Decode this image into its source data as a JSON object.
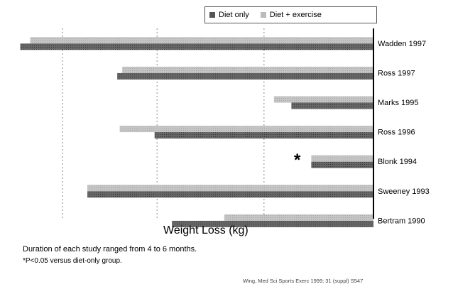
{
  "chart_data": {
    "type": "bar",
    "orientation": "horizontal",
    "categories": [
      "Wadden 1997",
      "Ross 1997",
      "Marks 1995",
      "Ross 1996",
      "Blonk 1994",
      "Sweeney 1993",
      "Bertram 1990"
    ],
    "series": [
      {
        "name": "Diet only",
        "color": "#5a5a5a",
        "values": [
          -14.2,
          -10.3,
          -3.3,
          -8.8,
          -2.5,
          -11.5,
          -8.1
        ]
      },
      {
        "name": "Diet + exercise",
        "color": "#bdbdbd",
        "values": [
          -13.8,
          -10.1,
          -4.0,
          -10.2,
          -2.5,
          -11.5,
          -6.0
        ]
      }
    ],
    "xlabel": "Weight Loss (kg)",
    "xlim": [
      -14.5,
      0
    ],
    "gridlines": [
      -12.5,
      -8.7,
      -4.4
    ],
    "grid": true,
    "legend_position": "top-right",
    "annotations": [
      {
        "text": "*",
        "category": "Blonk 1994"
      }
    ]
  },
  "notes": {
    "duration": "Duration of each study ranged from 4 to 6 months.",
    "significance": "*P<0.05 versus diet-only group.",
    "source": "Wing, Med Sci Sports Exerc 1999; 31 (suppl) S547"
  }
}
